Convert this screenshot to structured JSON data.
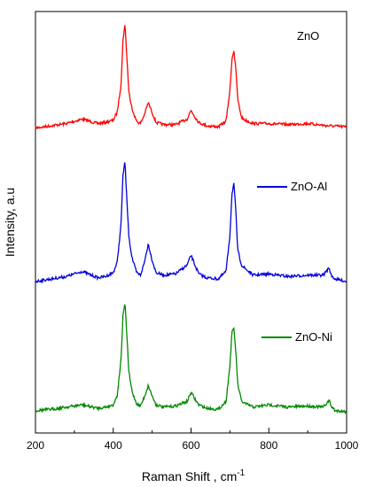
{
  "chart_data": {
    "type": "line",
    "xlabel": "Raman Shift , cm",
    "xlabel_superscript": "-1",
    "ylabel": "Intensity, a.u",
    "xlim": [
      200,
      1000
    ],
    "x_ticks": [
      200,
      400,
      600,
      800,
      1000
    ],
    "y_ticks_shown": false,
    "legend_placement": "inline-right",
    "series": [
      {
        "name": "ZnO",
        "color": "#ff0000",
        "offset": 2.0,
        "x": [
          200,
          240,
          280,
          320,
          360,
          380,
          400,
          410,
          420,
          425,
          430,
          435,
          440,
          445,
          450,
          460,
          470,
          480,
          490,
          500,
          510,
          530,
          560,
          590,
          600,
          610,
          620,
          640,
          670,
          690,
          700,
          705,
          710,
          715,
          720,
          730,
          740,
          760,
          800,
          850,
          900,
          950,
          1000
        ],
        "y": [
          0.06,
          0.08,
          0.1,
          0.14,
          0.1,
          0.11,
          0.13,
          0.2,
          0.45,
          0.85,
          1.0,
          0.7,
          0.4,
          0.28,
          0.22,
          0.12,
          0.1,
          0.18,
          0.29,
          0.2,
          0.11,
          0.09,
          0.09,
          0.14,
          0.22,
          0.16,
          0.11,
          0.08,
          0.07,
          0.12,
          0.4,
          0.68,
          0.76,
          0.6,
          0.32,
          0.15,
          0.13,
          0.1,
          0.1,
          0.09,
          0.1,
          0.08,
          0.07
        ]
      },
      {
        "name": "ZnO-Al",
        "color": "#0000dd",
        "offset": 1.0,
        "x": [
          200,
          240,
          280,
          320,
          360,
          380,
          400,
          410,
          420,
          425,
          430,
          435,
          440,
          445,
          450,
          460,
          470,
          480,
          490,
          500,
          510,
          530,
          560,
          590,
          600,
          610,
          620,
          640,
          670,
          690,
          700,
          705,
          710,
          715,
          720,
          730,
          740,
          760,
          800,
          850,
          900,
          940,
          955,
          960,
          970,
          1000
        ],
        "y": [
          0.05,
          0.07,
          0.09,
          0.13,
          0.08,
          0.09,
          0.12,
          0.2,
          0.5,
          0.9,
          1.0,
          0.7,
          0.42,
          0.3,
          0.22,
          0.12,
          0.1,
          0.2,
          0.35,
          0.22,
          0.12,
          0.1,
          0.11,
          0.18,
          0.26,
          0.18,
          0.11,
          0.08,
          0.07,
          0.13,
          0.42,
          0.74,
          0.83,
          0.62,
          0.3,
          0.18,
          0.15,
          0.1,
          0.11,
          0.09,
          0.1,
          0.1,
          0.16,
          0.1,
          0.07,
          0.05
        ]
      },
      {
        "name": "ZnO-Ni",
        "color": "#008800",
        "offset": 0.0,
        "x": [
          200,
          240,
          280,
          320,
          360,
          380,
          400,
          410,
          420,
          425,
          430,
          435,
          440,
          445,
          450,
          460,
          470,
          480,
          490,
          500,
          510,
          530,
          560,
          590,
          600,
          610,
          620,
          640,
          670,
          690,
          700,
          705,
          710,
          715,
          720,
          730,
          740,
          760,
          800,
          850,
          900,
          940,
          955,
          960,
          970,
          1000
        ],
        "y": [
          0.05,
          0.06,
          0.08,
          0.1,
          0.07,
          0.08,
          0.1,
          0.18,
          0.5,
          0.88,
          1.0,
          0.72,
          0.4,
          0.28,
          0.2,
          0.11,
          0.09,
          0.17,
          0.27,
          0.18,
          0.1,
          0.08,
          0.09,
          0.13,
          0.21,
          0.15,
          0.1,
          0.07,
          0.06,
          0.13,
          0.45,
          0.73,
          0.78,
          0.58,
          0.28,
          0.13,
          0.11,
          0.08,
          0.1,
          0.08,
          0.09,
          0.08,
          0.14,
          0.09,
          0.05,
          0.04
        ]
      }
    ]
  }
}
